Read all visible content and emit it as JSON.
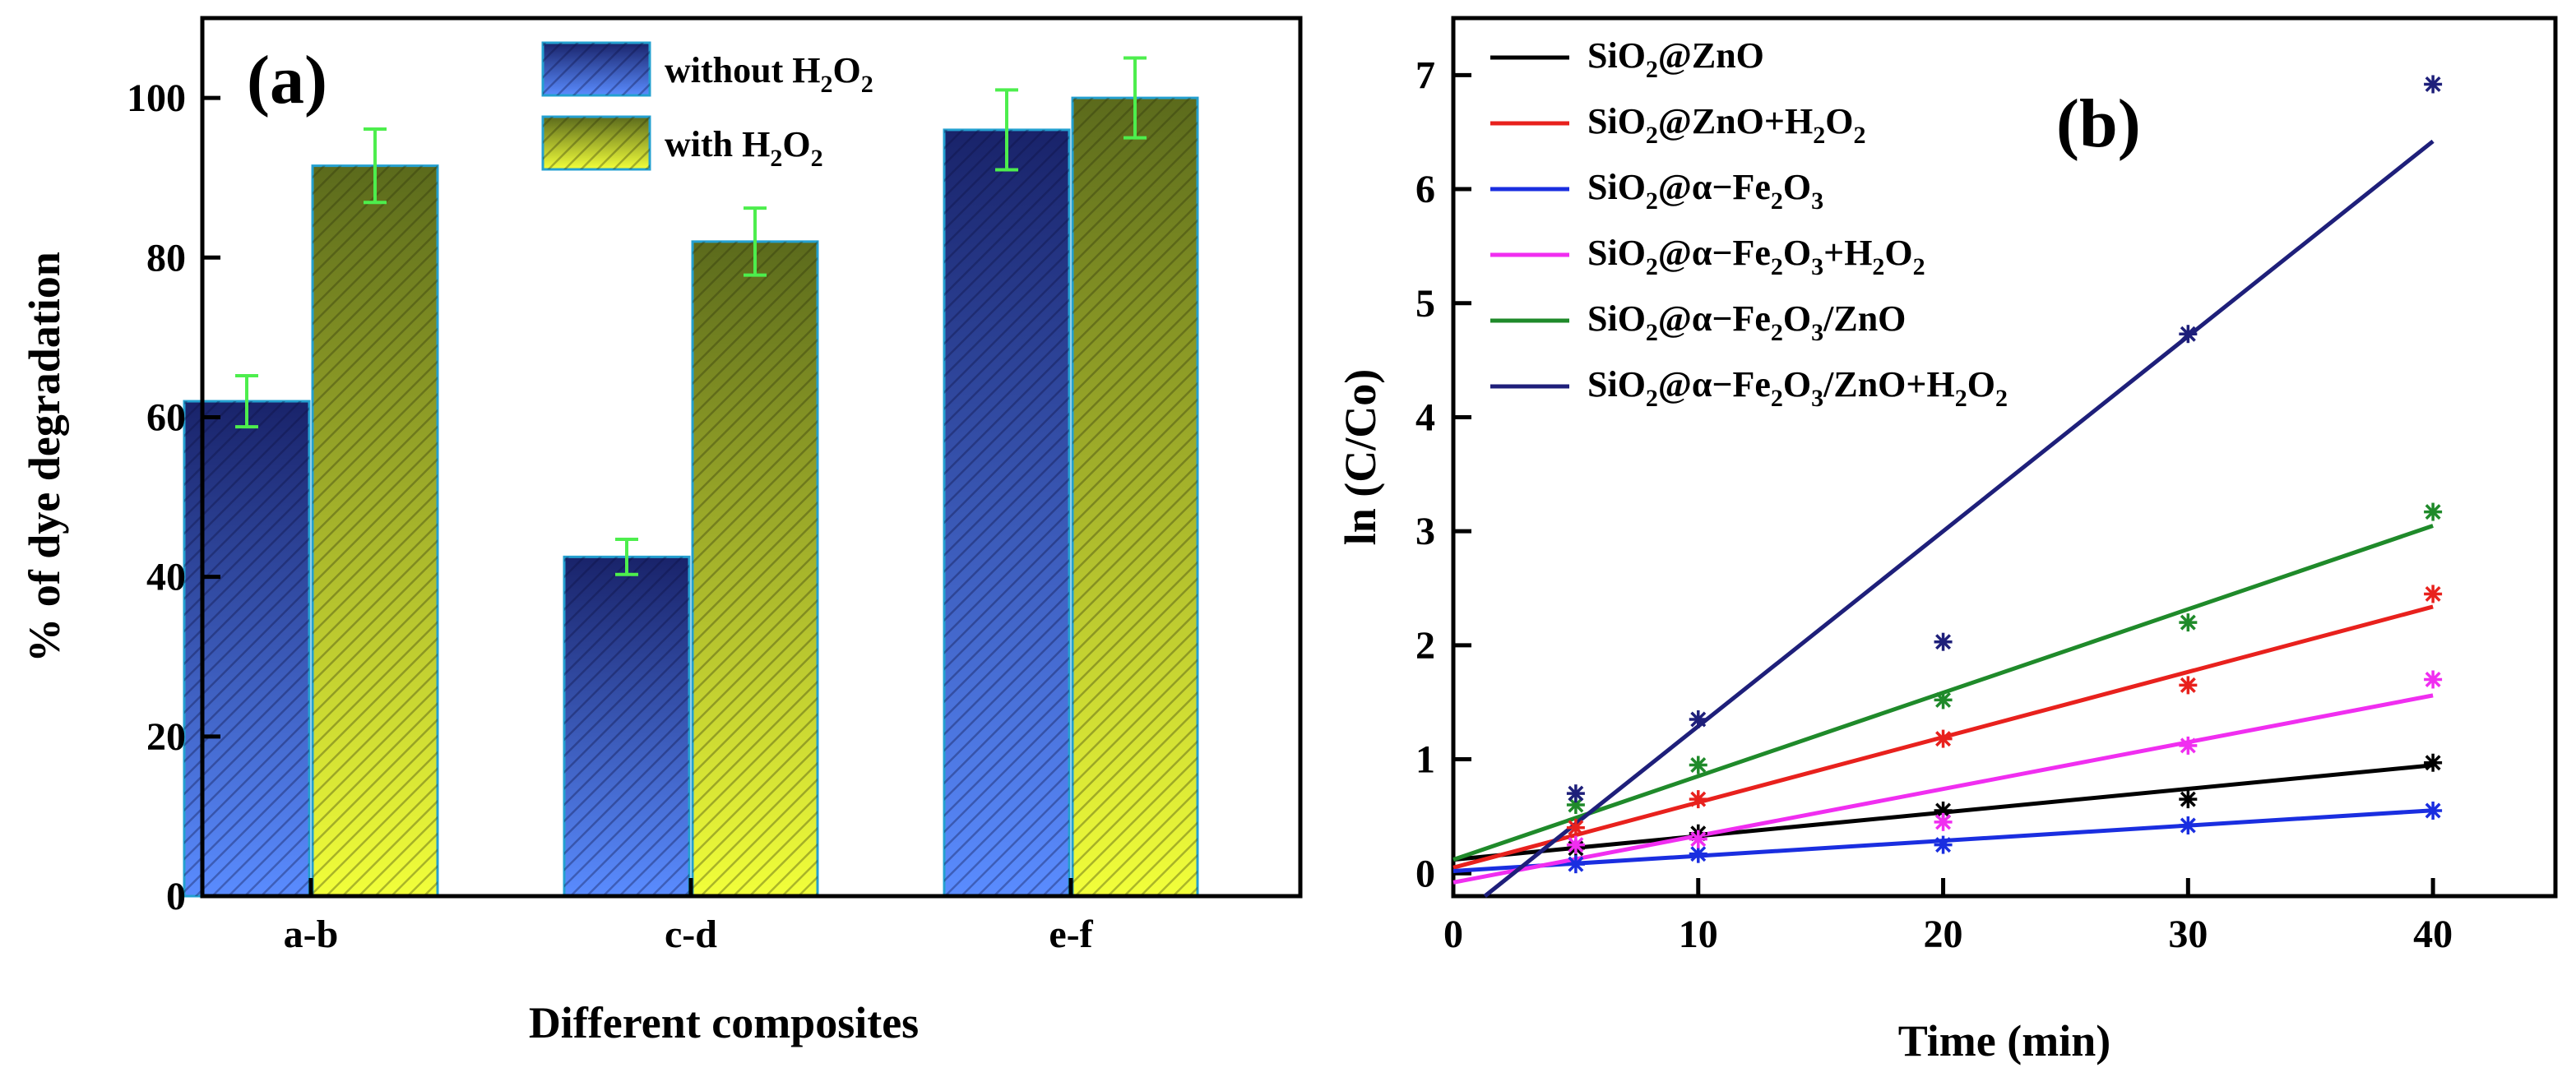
{
  "chart_data": [
    {
      "type": "bar",
      "panel_label": "(a)",
      "title": "",
      "xlabel": "Different composites",
      "ylabel": "% of dye degradation",
      "categories": [
        "a-b",
        "c-d",
        "e-f"
      ],
      "ylim": [
        0,
        110
      ],
      "yticks": [
        0,
        20,
        40,
        60,
        80,
        100
      ],
      "grid": false,
      "legend_position": "top-center",
      "series": [
        {
          "name": "without H2O2",
          "legend": [
            "without H",
            "2",
            "O",
            "2"
          ],
          "color": "#2c4fd6",
          "values": [
            62,
            42.5,
            96
          ],
          "errors": [
            3.2,
            2.2,
            5
          ]
        },
        {
          "name": "with H2O2",
          "legend": [
            "with H",
            "2",
            "O",
            "2"
          ],
          "color": "#b7c52a",
          "values": [
            91.5,
            82,
            100
          ],
          "errors": [
            4.6,
            4.2,
            5
          ]
        }
      ]
    },
    {
      "type": "scatter",
      "panel_label": "(b)",
      "title": "",
      "xlabel": "Time (min)",
      "ylabel": "ln (C/Co)",
      "xlim": [
        0,
        45
      ],
      "ylim": [
        -0.2,
        7.5
      ],
      "xticks": [
        0,
        10,
        20,
        30,
        40
      ],
      "yticks": [
        0,
        1,
        2,
        3,
        4,
        5,
        6,
        7
      ],
      "grid": false,
      "legend_position": "top-left",
      "series": [
        {
          "name": "SiO2@ZnO",
          "legend": [
            "SiO",
            "2",
            "@ZnO"
          ],
          "color": "#000000",
          "x": [
            5,
            10,
            20,
            30,
            40
          ],
          "y": [
            0.22,
            0.35,
            0.55,
            0.65,
            0.97
          ],
          "fit": [
            0.12,
            0.0207
          ]
        },
        {
          "name": "SiO2@ZnO+H2O2",
          "legend": [
            "SiO",
            "2",
            "@ZnO+H",
            "2",
            "O",
            "2"
          ],
          "color": "#e8211d",
          "x": [
            5,
            10,
            20,
            30,
            40
          ],
          "y": [
            0.4,
            0.65,
            1.18,
            1.65,
            2.45
          ],
          "fit": [
            0.05,
            0.0572
          ]
        },
        {
          "name": "SiO2@α−Fe2O3",
          "legend": [
            "SiO",
            "2",
            "@α−Fe",
            "2",
            "O",
            "3"
          ],
          "color": "#1a2ee0",
          "x": [
            5,
            10,
            20,
            30,
            40
          ],
          "y": [
            0.08,
            0.17,
            0.25,
            0.42,
            0.55
          ],
          "fit": [
            0.02,
            0.0133
          ]
        },
        {
          "name": "SiO2@α−Fe2O3+H2O2",
          "legend": [
            "SiO",
            "2",
            "@α−Fe",
            "2",
            "O",
            "3",
            "+H",
            "2",
            "O",
            "2"
          ],
          "color": "#f02ef0",
          "x": [
            5,
            10,
            20,
            30,
            40
          ],
          "y": [
            0.25,
            0.3,
            0.45,
            1.12,
            1.7
          ],
          "fit": [
            -0.08,
            0.041
          ]
        },
        {
          "name": "SiO2@α−Fe2O3/ZnO",
          "legend": [
            "SiO",
            "2",
            "@α−Fe",
            "2",
            "O",
            "3",
            "/ZnO"
          ],
          "color": "#1f8a2a",
          "x": [
            5,
            10,
            20,
            30,
            40
          ],
          "y": [
            0.6,
            0.95,
            1.52,
            2.2,
            3.17
          ],
          "fit": [
            0.12,
            0.0732
          ]
        },
        {
          "name": "SiO2@α−Fe2O3/ZnO+H2O2",
          "legend": [
            "SiO",
            "2",
            "@α−Fe",
            "2",
            "O",
            "3",
            "/ZnO+H",
            "2",
            "O",
            "2"
          ],
          "color": "#1e1f7a",
          "x": [
            5,
            10,
            20,
            30,
            40
          ],
          "y": [
            0.7,
            1.35,
            2.03,
            4.73,
            6.92
          ],
          "fit": [
            -0.42,
            0.171
          ]
        }
      ]
    }
  ]
}
